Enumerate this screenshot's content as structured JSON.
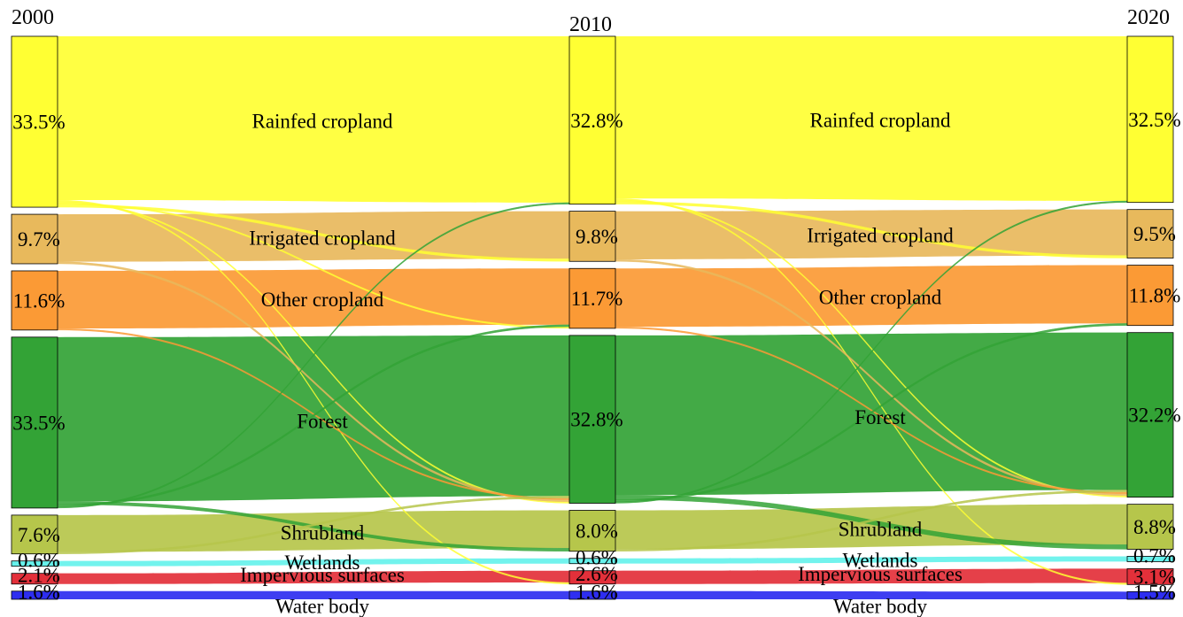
{
  "chart_data": {
    "type": "sankey",
    "title": "",
    "years": [
      "2000",
      "2010",
      "2020"
    ],
    "categories": [
      {
        "name": "Rainfed cropland",
        "color": "#ffff33",
        "shares": [
          "33.5%",
          "32.8%",
          "32.5%"
        ],
        "values": [
          33.5,
          32.8,
          32.5
        ]
      },
      {
        "name": "Irrigated cropland",
        "color": "#e8b95c",
        "shares": [
          "9.7%",
          "9.8%",
          "9.5%"
        ],
        "values": [
          9.7,
          9.8,
          9.5
        ]
      },
      {
        "name": "Other cropland",
        "color": "#fb9a35",
        "shares": [
          "11.6%",
          "11.7%",
          "11.8%"
        ],
        "values": [
          11.6,
          11.7,
          11.8
        ]
      },
      {
        "name": "Forest",
        "color": "#33a336",
        "shares": [
          "33.5%",
          "32.8%",
          "32.2%"
        ],
        "values": [
          33.5,
          32.8,
          32.2
        ]
      },
      {
        "name": "Shrubland",
        "color": "#b6c64b",
        "shares": [
          "7.6%",
          "8.0%",
          "8.8%"
        ],
        "values": [
          7.6,
          8.0,
          8.8
        ]
      },
      {
        "name": "Wetlands",
        "color": "#66f2ec",
        "shares": [
          "0.6%",
          "0.6%",
          "0.7%"
        ],
        "values": [
          0.6,
          0.6,
          0.7
        ]
      },
      {
        "name": "Impervious surfaces",
        "color": "#e3303a",
        "shares": [
          "2.1%",
          "2.6%",
          "3.1%"
        ],
        "values": [
          2.1,
          2.6,
          3.1
        ]
      },
      {
        "name": "Water body",
        "color": "#2e2ef0",
        "shares": [
          "1.6%",
          "1.6%",
          "1.5%"
        ],
        "values": [
          1.6,
          1.6,
          1.5
        ]
      }
    ],
    "transitions": [
      {
        "period": "2000-2010",
        "from": "Rainfed cropland",
        "to": "Irrigated cropland",
        "value": 0.5
      },
      {
        "period": "2000-2010",
        "from": "Rainfed cropland",
        "to": "Other cropland",
        "value": 0.3
      },
      {
        "period": "2000-2010",
        "from": "Rainfed cropland",
        "to": "Forest",
        "value": 0.3
      },
      {
        "period": "2000-2010",
        "from": "Rainfed cropland",
        "to": "Impervious surfaces",
        "value": 0.3
      },
      {
        "period": "2000-2010",
        "from": "Irrigated cropland",
        "to": "Forest",
        "value": 0.4
      },
      {
        "period": "2000-2010",
        "from": "Other cropland",
        "to": "Forest",
        "value": 0.3
      },
      {
        "period": "2000-2010",
        "from": "Forest",
        "to": "Rainfed cropland",
        "value": 0.3
      },
      {
        "period": "2000-2010",
        "from": "Forest",
        "to": "Other cropland",
        "value": 0.4
      },
      {
        "period": "2000-2010",
        "from": "Forest",
        "to": "Shrubland",
        "value": 0.6
      },
      {
        "period": "2000-2010",
        "from": "Shrubland",
        "to": "Forest",
        "value": 0.4
      },
      {
        "period": "2010-2020",
        "from": "Rainfed cropland",
        "to": "Irrigated cropland",
        "value": 0.5
      },
      {
        "period": "2010-2020",
        "from": "Rainfed cropland",
        "to": "Forest",
        "value": 0.3
      },
      {
        "period": "2010-2020",
        "from": "Rainfed cropland",
        "to": "Impervious surfaces",
        "value": 0.3
      },
      {
        "period": "2010-2020",
        "from": "Irrigated cropland",
        "to": "Forest",
        "value": 0.4
      },
      {
        "period": "2010-2020",
        "from": "Other cropland",
        "to": "Forest",
        "value": 0.3
      },
      {
        "period": "2010-2020",
        "from": "Forest",
        "to": "Rainfed cropland",
        "value": 0.3
      },
      {
        "period": "2010-2020",
        "from": "Forest",
        "to": "Other cropland",
        "value": 0.4
      },
      {
        "period": "2010-2020",
        "from": "Forest",
        "to": "Shrubland",
        "value": 0.9
      },
      {
        "period": "2010-2020",
        "from": "Shrubland",
        "to": "Forest",
        "value": 0.4
      }
    ]
  }
}
